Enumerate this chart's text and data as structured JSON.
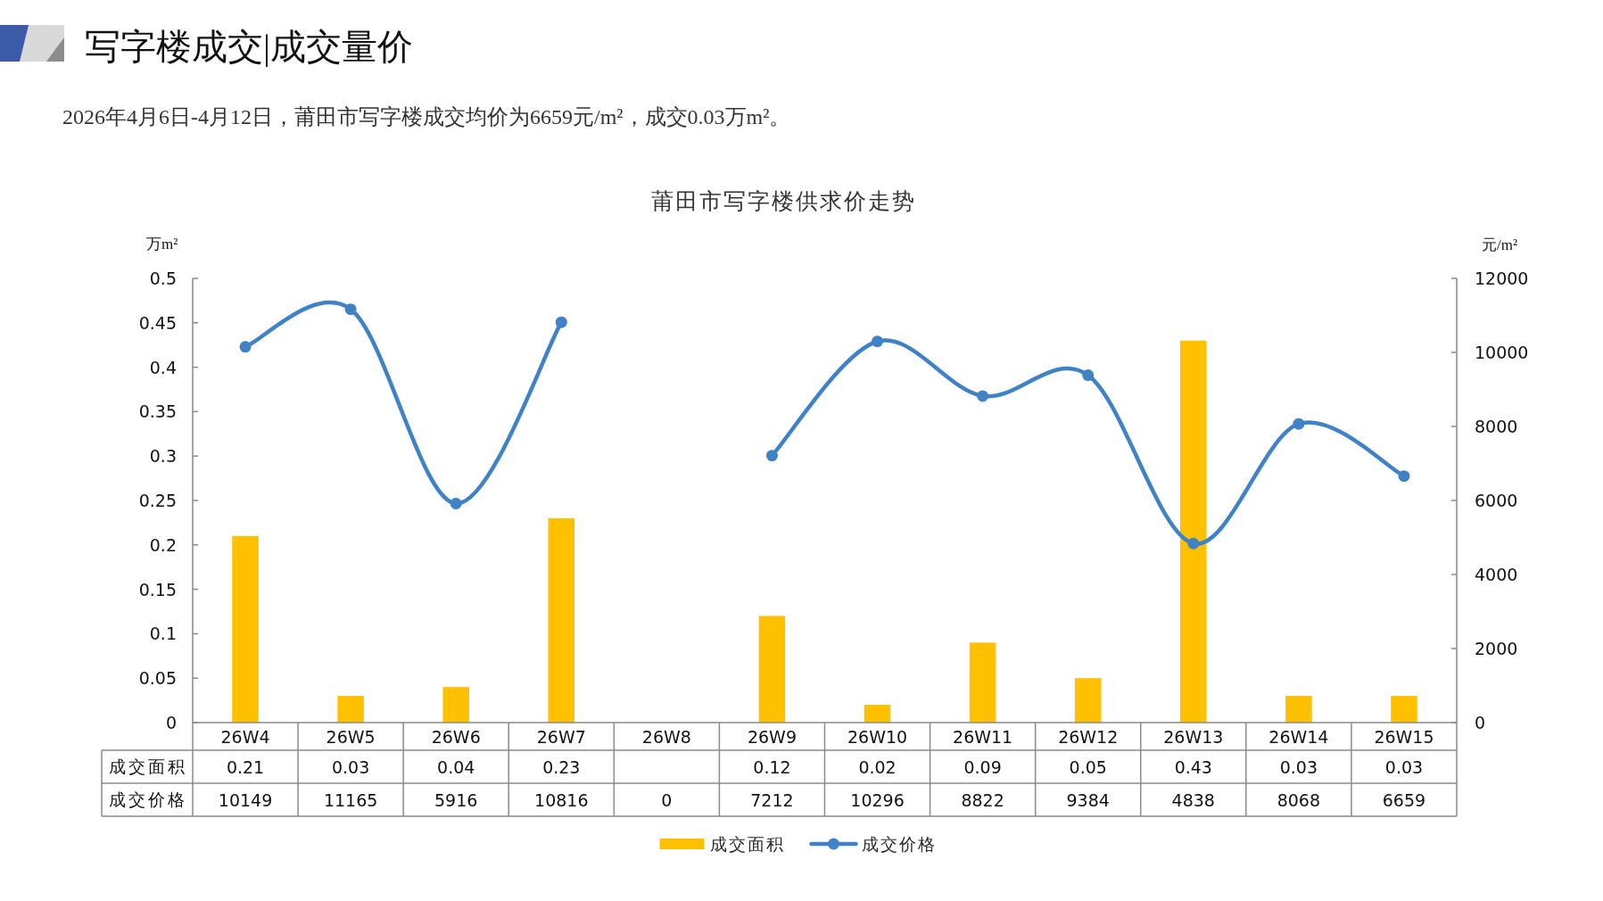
{
  "chart_data": {
    "type": "bar",
    "title": "莆田市写字楼供求价走势",
    "annotations": [
      "写字楼成交|成交量价",
      "2026年4月6日-4月12日，莆田市写字楼成交均价为6659元/m²，成交0.03万m²。"
    ],
    "ylabel": "万m²",
    "y2label": "元/m²",
    "categories": [
      "26W4",
      "26W5",
      "26W6",
      "26W7",
      "26W8",
      "26W9",
      "26W10",
      "26W11",
      "26W12",
      "26W13",
      "26W14",
      "26W15"
    ],
    "series": [
      {
        "name": "成交面积",
        "color": "#ffc000",
        "values": [
          0.21,
          0.03,
          0.04,
          0.23,
          null,
          0.12,
          0.02,
          0.09,
          0.05,
          0.43,
          0.03,
          0.03
        ],
        "value_labels": [
          "0.21",
          "0.03",
          "0.04",
          "0.23",
          null,
          "0.12",
          "0.02",
          "0.09",
          "0.05",
          "0.43",
          "0.03",
          "0.03"
        ]
      },
      {
        "name": "成交价格",
        "type": "line",
        "axis": "y2",
        "color": "#3f83c6",
        "values": [
          10149,
          11165,
          5916,
          10816,
          null,
          7212,
          10296,
          8822,
          9384,
          4838,
          8068,
          6659
        ],
        "value_labels": [
          "10149",
          "11165",
          "5916",
          "10816",
          "0",
          "7212",
          "10296",
          "8822",
          "9384",
          "4838",
          "8068",
          "6659"
        ]
      }
    ],
    "ylim": [
      0,
      0.5
    ],
    "yticks": [
      0,
      0.05,
      0.1,
      0.15,
      0.2,
      0.25,
      0.3,
      0.35,
      0.4,
      0.45,
      0.5
    ],
    "y2lim": [
      0,
      12000
    ],
    "y2ticks": [
      0,
      2000,
      4000,
      6000,
      8000,
      10000,
      12000
    ],
    "marker": "circle",
    "line_style": "solid",
    "legend": "bottom"
  }
}
